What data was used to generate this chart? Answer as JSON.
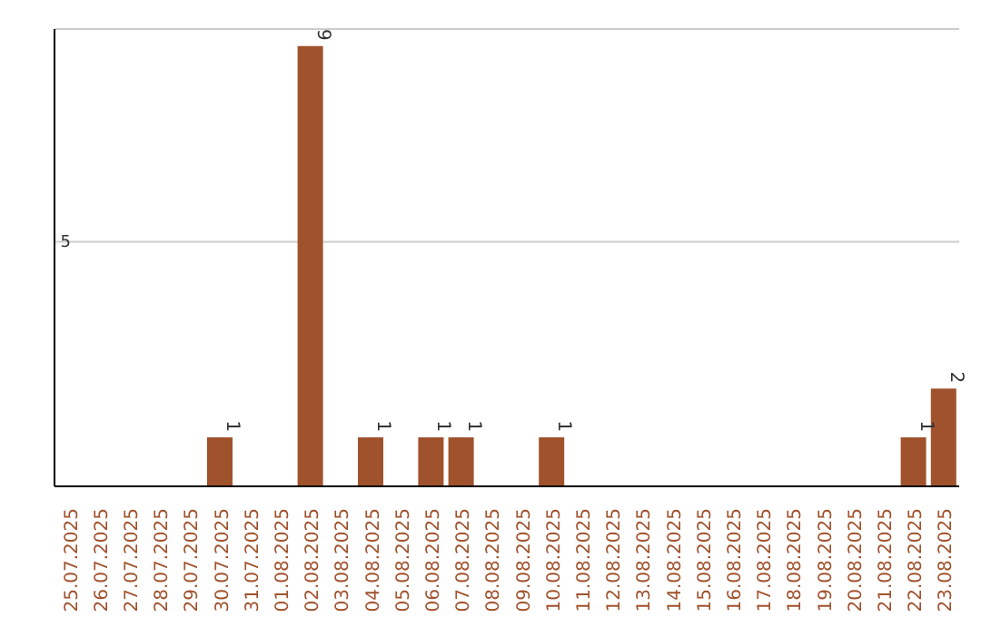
{
  "chart_data": {
    "type": "bar",
    "categories": [
      "25.07.2025",
      "26.07.2025",
      "27.07.2025",
      "28.07.2025",
      "29.07.2025",
      "30.07.2025",
      "31.07.2025",
      "01.08.2025",
      "02.08.2025",
      "03.08.2025",
      "04.08.2025",
      "05.08.2025",
      "06.08.2025",
      "07.08.2025",
      "08.08.2025",
      "09.08.2025",
      "10.08.2025",
      "11.08.2025",
      "12.08.2025",
      "13.08.2025",
      "14.08.2025",
      "15.08.2025",
      "16.08.2025",
      "17.08.2025",
      "18.08.2025",
      "19.08.2025",
      "20.08.2025",
      "21.08.2025",
      "22.08.2025",
      "23.08.2025"
    ],
    "values": [
      0,
      0,
      0,
      0,
      0,
      1,
      0,
      0,
      9,
      0,
      1,
      0,
      1,
      1,
      0,
      0,
      1,
      0,
      0,
      0,
      0,
      0,
      0,
      0,
      0,
      0,
      0,
      0,
      1,
      2
    ],
    "value_labels": [
      null,
      null,
      null,
      null,
      null,
      "1",
      null,
      null,
      "9",
      null,
      "1",
      null,
      "1",
      "1",
      null,
      null,
      "1",
      null,
      null,
      null,
      null,
      null,
      null,
      null,
      null,
      null,
      null,
      null,
      "1",
      "2"
    ],
    "color": "#a0522d",
    "ylim": [
      0,
      9.35
    ],
    "yticks": [
      5
    ],
    "grid": "y"
  }
}
